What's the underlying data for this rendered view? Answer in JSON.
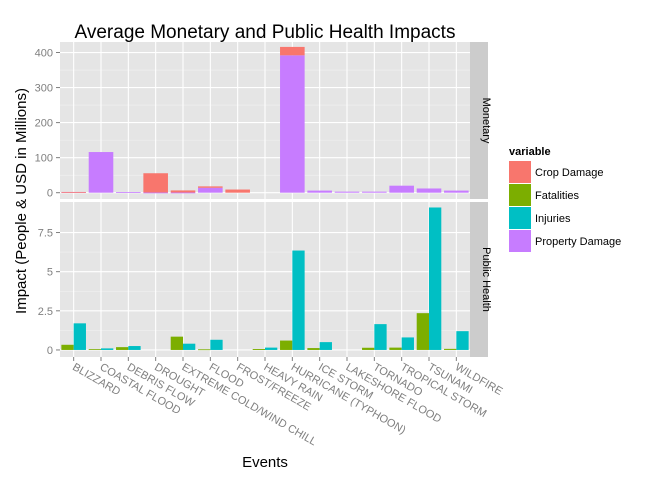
{
  "chart_data": {
    "type": "bar",
    "title": "Average Monetary and Public Health Impacts",
    "xlabel": "Events",
    "ylabel": "Impact (People & USD in Millions)",
    "categories": [
      "BLIZZARD",
      "COASTAL FLOOD",
      "DEBRIS FLOW",
      "DROUGHT",
      "EXTREME COLD/WIND CHILL",
      "FLOOD",
      "FROST/FREEZE",
      "HEAVY RAIN",
      "HURRICANE (TYPHOON)",
      "ICE STORM",
      "LAKESHORE FLOOD",
      "TORNADO",
      "TROPICAL STORM",
      "TSUNAMI",
      "WILDFIRE"
    ],
    "legend": {
      "title": "variable",
      "position": "right",
      "entries": [
        {
          "name": "Crop Damage",
          "color": "#F8766D"
        },
        {
          "name": "Fatalities",
          "color": "#7CAE00"
        },
        {
          "name": "Injuries",
          "color": "#00BFC4"
        },
        {
          "name": "Property Damage",
          "color": "#C77CFF"
        }
      ]
    },
    "grid": true,
    "facets": [
      {
        "label": "Monetary",
        "bar_mode": "stacked",
        "ylim": [
          -18,
          430
        ],
        "yticks": [
          0,
          100,
          200,
          300,
          400
        ],
        "series": [
          {
            "name": "Crop Damage",
            "color": "#F8766D",
            "values": [
              0.1,
              0,
              0,
              55,
              6,
              4,
              9,
              0,
              24,
              0,
              0,
              0,
              0,
              0,
              0
            ]
          },
          {
            "name": "Property Damage",
            "color": "#C77CFF",
            "values": [
              2,
              116,
              1.5,
              0.5,
              0.5,
              14,
              0,
              0,
              392,
              6,
              3,
              3,
              20,
              12,
              6
            ]
          }
        ]
      },
      {
        "label": "Public Health",
        "bar_mode": "dodge",
        "ylim": [
          -0.45,
          9.45
        ],
        "yticks": [
          0,
          2.5,
          5,
          7.5
        ],
        "series": [
          {
            "name": "Fatalities",
            "color": "#7CAE00",
            "values": [
              0.33,
              0.05,
              0.18,
              0,
              0.85,
              0.04,
              0,
              0.06,
              0.6,
              0.12,
              0,
              0.14,
              0.15,
              2.35,
              0.07
            ]
          },
          {
            "name": "Injuries",
            "color": "#00BFC4",
            "values": [
              1.7,
              0.1,
              0.25,
              0,
              0.4,
              0.65,
              0,
              0.15,
              6.35,
              0.5,
              0,
              1.65,
              0.8,
              9.1,
              1.2
            ]
          }
        ]
      }
    ]
  }
}
